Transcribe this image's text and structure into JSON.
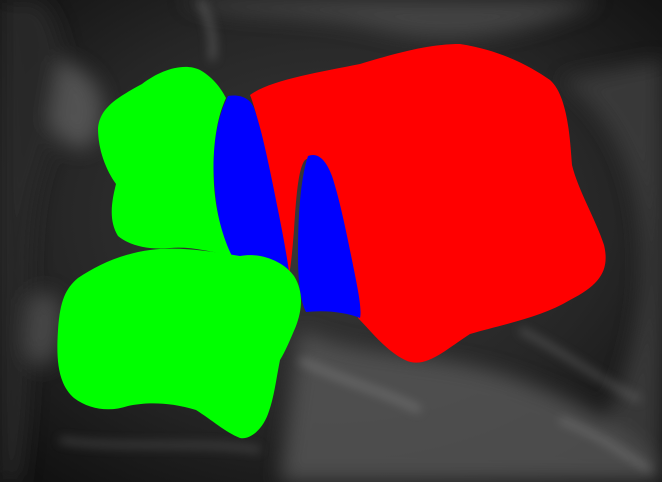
{
  "image": {
    "kind": "segmentation-mask-overlay-on-grayscale-radiograph",
    "background_tone": "#1e1e1e"
  },
  "regions": [
    {
      "name": "red-region",
      "color": "#ff0000"
    },
    {
      "name": "blue-region-left",
      "color": "#0000ff"
    },
    {
      "name": "blue-region-right",
      "color": "#0000ff"
    },
    {
      "name": "green-region-upper",
      "color": "#00ff00"
    },
    {
      "name": "green-region-lower",
      "color": "#00ff00"
    }
  ]
}
